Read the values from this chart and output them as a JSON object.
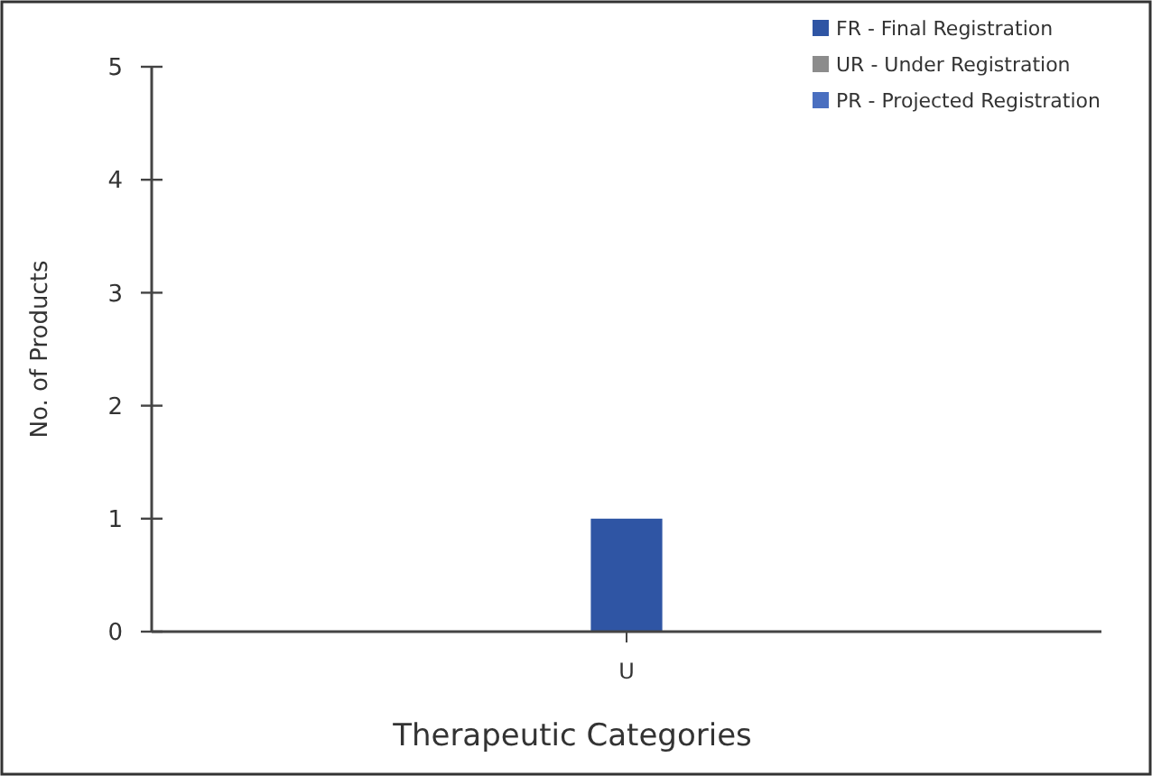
{
  "chart_data": {
    "type": "bar",
    "stacked": true,
    "xlabel": "Therapeutic Categories",
    "ylabel": "No. of Products",
    "categories": [
      "U"
    ],
    "series": [
      {
        "name": "FR - Final Registration",
        "color": "#2f55a4",
        "values": [
          1
        ]
      },
      {
        "name": "UR - Under Registration",
        "color": "#8c8c8c",
        "values": [
          0
        ]
      },
      {
        "name": "PR - Projected Registration",
        "color": "#4a6fc0",
        "values": [
          0
        ]
      }
    ],
    "ylim": [
      0,
      5
    ],
    "yticks": [
      0,
      1,
      2,
      3,
      4,
      5
    ],
    "legend": "top right"
  }
}
